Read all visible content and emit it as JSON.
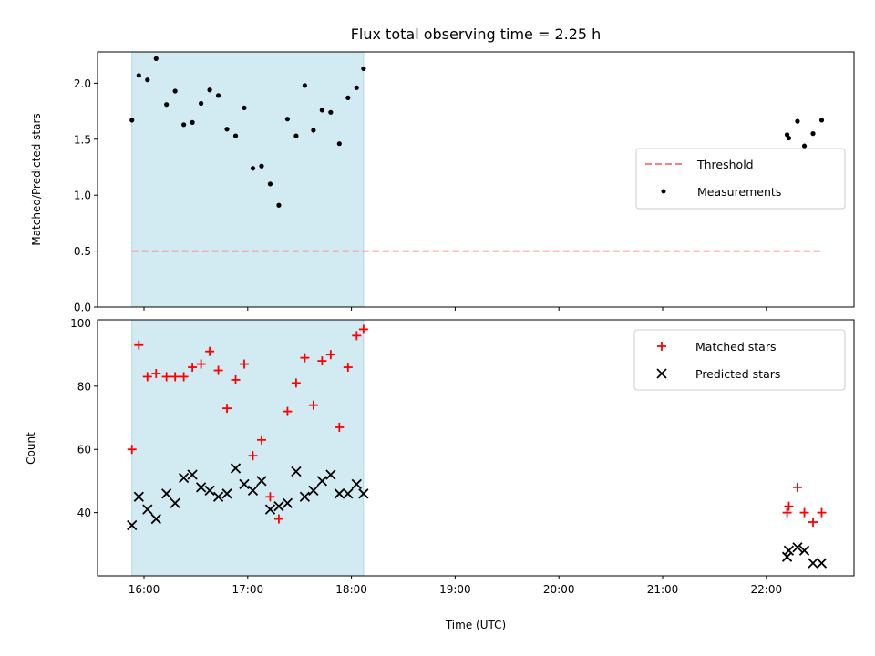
{
  "title": "Flux total observing time = 2.25 h",
  "xlabel": "Time (UTC)",
  "chart_data": [
    {
      "type": "scatter",
      "ylabel": "Matched/Predicted stars",
      "ylim": [
        0,
        2.28
      ],
      "yticks": [
        "0.0",
        "0.5",
        "1.0",
        "1.5",
        "2.0"
      ],
      "shaded_interval": {
        "start": "15:53",
        "end": "18:07",
        "color": "#add8e6"
      },
      "threshold": {
        "name": "Threshold",
        "value": 0.5,
        "x": [
          "15:53",
          "22:32"
        ],
        "color": "#ff7f7f",
        "style": "dashed"
      },
      "series": [
        {
          "name": "Measurements",
          "color": "#000000",
          "marker": "dot",
          "x": [
            "15:53",
            "15:57",
            "16:02",
            "16:07",
            "16:13",
            "16:18",
            "16:23",
            "16:28",
            "16:33",
            "16:38",
            "16:43",
            "16:48",
            "16:53",
            "16:58",
            "17:03",
            "17:08",
            "17:13",
            "17:18",
            "17:23",
            "17:28",
            "17:33",
            "17:38",
            "17:43",
            "17:48",
            "17:53",
            "17:58",
            "18:03",
            "18:07",
            "22:12",
            "22:13",
            "22:18",
            "22:22",
            "22:27",
            "22:32"
          ],
          "y": [
            1.67,
            2.07,
            2.03,
            2.22,
            1.81,
            1.93,
            1.63,
            1.65,
            1.82,
            1.94,
            1.89,
            1.59,
            1.53,
            1.78,
            1.24,
            1.26,
            1.1,
            0.91,
            1.68,
            1.53,
            1.98,
            1.58,
            1.76,
            1.74,
            1.46,
            1.87,
            1.96,
            2.13,
            1.54,
            1.51,
            1.66,
            1.44,
            1.55,
            1.67
          ]
        }
      ]
    },
    {
      "type": "scatter",
      "ylabel": "Count",
      "ylim": [
        20,
        101
      ],
      "yticks": [
        "40",
        "60",
        "80",
        "100"
      ],
      "xticks": [
        "16:00",
        "17:00",
        "18:00",
        "19:00",
        "20:00",
        "21:00",
        "22:00"
      ],
      "shaded_interval": {
        "start": "15:53",
        "end": "18:07",
        "color": "#add8e6"
      },
      "series": [
        {
          "name": "Matched stars",
          "color": "#ff0000",
          "marker": "plus",
          "x": [
            "15:53",
            "15:57",
            "16:02",
            "16:07",
            "16:13",
            "16:18",
            "16:23",
            "16:28",
            "16:33",
            "16:38",
            "16:43",
            "16:48",
            "16:53",
            "16:58",
            "17:03",
            "17:08",
            "17:13",
            "17:18",
            "17:23",
            "17:28",
            "17:33",
            "17:38",
            "17:43",
            "17:48",
            "17:53",
            "17:58",
            "18:03",
            "18:07",
            "22:12",
            "22:13",
            "22:18",
            "22:22",
            "22:27",
            "22:32"
          ],
          "y": [
            60,
            93,
            83,
            84,
            83,
            83,
            83,
            86,
            87,
            91,
            85,
            73,
            82,
            87,
            58,
            63,
            45,
            38,
            72,
            81,
            89,
            74,
            88,
            90,
            67,
            86,
            96,
            98,
            40,
            42,
            48,
            40,
            37,
            40
          ]
        },
        {
          "name": "Predicted stars",
          "color": "#000000",
          "marker": "x",
          "x": [
            "15:53",
            "15:57",
            "16:02",
            "16:07",
            "16:13",
            "16:18",
            "16:23",
            "16:28",
            "16:33",
            "16:38",
            "16:43",
            "16:48",
            "16:53",
            "16:58",
            "17:03",
            "17:08",
            "17:13",
            "17:18",
            "17:23",
            "17:28",
            "17:33",
            "17:38",
            "17:43",
            "17:48",
            "17:53",
            "17:58",
            "18:03",
            "18:07",
            "22:12",
            "22:13",
            "22:18",
            "22:22",
            "22:27",
            "22:32"
          ],
          "y": [
            36,
            45,
            41,
            38,
            46,
            43,
            51,
            52,
            48,
            47,
            45,
            46,
            54,
            49,
            47,
            50,
            41,
            42,
            43,
            53,
            45,
            47,
            50,
            52,
            46,
            46,
            49,
            46,
            26,
            28,
            29,
            28,
            24,
            24
          ]
        }
      ]
    }
  ]
}
